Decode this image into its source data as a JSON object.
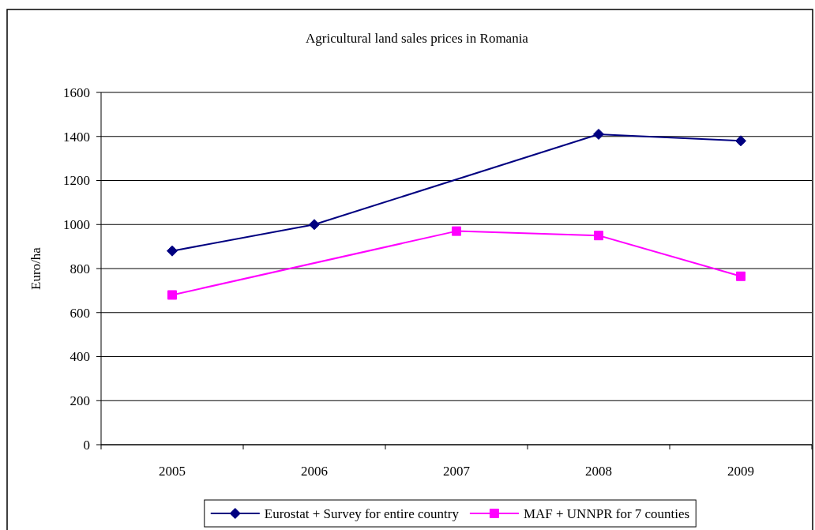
{
  "chart_data": {
    "type": "line",
    "title": "Agricultural land sales prices in Romania",
    "ylabel": "Euro/ha",
    "categories": [
      "2005",
      "2006",
      "2007",
      "2008",
      "2009"
    ],
    "series": [
      {
        "name": "Eurostat + Survey for entire country",
        "color": "#000080",
        "marker": "diamond",
        "values": [
          880,
          1000,
          null,
          1410,
          1380
        ]
      },
      {
        "name": "MAF + UNNPR for 7 counties",
        "color": "#ff00ff",
        "marker": "square",
        "values": [
          680,
          null,
          970,
          950,
          765
        ]
      }
    ],
    "ylim": [
      0,
      1600
    ],
    "yticks": [
      0,
      200,
      400,
      600,
      800,
      1000,
      1200,
      1400,
      1600
    ],
    "grid": "y",
    "legend": "bottom"
  }
}
